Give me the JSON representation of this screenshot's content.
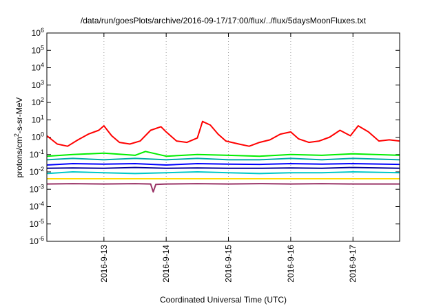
{
  "chart_data": {
    "type": "line",
    "title": "/data/run/goesPlots/archive/2016-09-17/17:00/flux/../flux/5daysMoonFluxes.txt",
    "xlabel": "Coordinated Universal Time (UTC)",
    "ylabel_parts": {
      "pre": "protons/cm",
      "sup": "2",
      "post": "-s-sr-MeV"
    },
    "x_start": "2016-09-12T02:00",
    "x_end": "2016-09-17T18:00",
    "y_scale": "log",
    "ylim": [
      1e-06,
      1000000.0
    ],
    "x_ticks": [
      {
        "x": "2016-09-13T00:00",
        "label": "2016-9-13"
      },
      {
        "x": "2016-09-14T00:00",
        "label": "2016-9-14"
      },
      {
        "x": "2016-09-15T00:00",
        "label": "2016-9-15"
      },
      {
        "x": "2016-09-16T00:00",
        "label": "2016-9-16"
      },
      {
        "x": "2016-09-17T00:00",
        "label": "2016-9-17"
      }
    ],
    "y_ticks": [
      {
        "value": 1e-06,
        "base": "10",
        "exp": "-6"
      },
      {
        "value": 1e-05,
        "base": "10",
        "exp": "-5"
      },
      {
        "value": 0.0001,
        "base": "10",
        "exp": "-4"
      },
      {
        "value": 0.001,
        "base": "10",
        "exp": "-3"
      },
      {
        "value": 0.01,
        "base": "10",
        "exp": "-2"
      },
      {
        "value": 0.1,
        "base": "10",
        "exp": "-1"
      },
      {
        "value": 1,
        "base": "10",
        "exp": "0"
      },
      {
        "value": 10,
        "base": "10",
        "exp": "1"
      },
      {
        "value": 100,
        "base": "10",
        "exp": "2"
      },
      {
        "value": 1000.0,
        "base": "10",
        "exp": "3"
      },
      {
        "value": 10000.0,
        "base": "10",
        "exp": "4"
      },
      {
        "value": 100000.0,
        "base": "10",
        "exp": "5"
      },
      {
        "value": 1000000.0,
        "base": "10",
        "exp": "6"
      }
    ],
    "grid": {
      "vertical": true,
      "horizontal": false,
      "style": "dotted"
    },
    "legend": "none",
    "series": [
      {
        "color": "#ff0000",
        "x": [
          "2016-09-12T02:00",
          "2016-09-12T06:00",
          "2016-09-12T10:00",
          "2016-09-12T14:00",
          "2016-09-12T18:00",
          "2016-09-12T22:00",
          "2016-09-13T00:00",
          "2016-09-13T03:00",
          "2016-09-13T06:00",
          "2016-09-13T10:00",
          "2016-09-13T14:00",
          "2016-09-13T18:00",
          "2016-09-13T22:00",
          "2016-09-14T00:00",
          "2016-09-14T04:00",
          "2016-09-14T08:00",
          "2016-09-14T12:00",
          "2016-09-14T14:00",
          "2016-09-14T17:00",
          "2016-09-14T20:00",
          "2016-09-14T23:00",
          "2016-09-15T04:00",
          "2016-09-15T08:00",
          "2016-09-15T12:00",
          "2016-09-15T16:00",
          "2016-09-15T20:00",
          "2016-09-16T00:00",
          "2016-09-16T03:00",
          "2016-09-16T07:00",
          "2016-09-16T11:00",
          "2016-09-16T15:00",
          "2016-09-16T19:00",
          "2016-09-16T23:00",
          "2016-09-17T02:00",
          "2016-09-17T06:00",
          "2016-09-17T10:00",
          "2016-09-17T14:00",
          "2016-09-17T18:00"
        ],
        "y": [
          1.2,
          0.4,
          0.3,
          0.7,
          1.5,
          2.5,
          4.5,
          1.2,
          0.5,
          0.4,
          0.6,
          2.5,
          4.0,
          2.0,
          0.6,
          0.5,
          0.9,
          8.0,
          5.0,
          1.5,
          0.6,
          0.4,
          0.3,
          0.5,
          0.7,
          1.5,
          2.0,
          0.8,
          0.5,
          0.6,
          1.0,
          2.5,
          1.2,
          4.5,
          2.0,
          0.6,
          0.7,
          0.6
        ]
      },
      {
        "color": "#00ee00",
        "x": [
          "2016-09-12T02:00",
          "2016-09-12T12:00",
          "2016-09-13T00:00",
          "2016-09-13T12:00",
          "2016-09-13T16:00",
          "2016-09-14T00:00",
          "2016-09-14T12:00",
          "2016-09-15T00:00",
          "2016-09-15T12:00",
          "2016-09-16T00:00",
          "2016-09-16T12:00",
          "2016-09-17T00:00",
          "2016-09-17T18:00"
        ],
        "y": [
          0.08,
          0.1,
          0.12,
          0.09,
          0.15,
          0.08,
          0.1,
          0.09,
          0.08,
          0.1,
          0.09,
          0.11,
          0.09
        ]
      },
      {
        "color": "#00aaaa",
        "x": [
          "2016-09-12T02:00",
          "2016-09-12T12:00",
          "2016-09-13T00:00",
          "2016-09-13T12:00",
          "2016-09-14T00:00",
          "2016-09-14T12:00",
          "2016-09-15T00:00",
          "2016-09-15T12:00",
          "2016-09-16T00:00",
          "2016-09-16T12:00",
          "2016-09-17T00:00",
          "2016-09-17T18:00"
        ],
        "y": [
          0.05,
          0.06,
          0.05,
          0.06,
          0.05,
          0.06,
          0.05,
          0.05,
          0.06,
          0.05,
          0.06,
          0.05
        ]
      },
      {
        "color": "#0000ff",
        "x": [
          "2016-09-12T02:00",
          "2016-09-12T12:00",
          "2016-09-13T00:00",
          "2016-09-13T12:00",
          "2016-09-14T00:00",
          "2016-09-14T12:00",
          "2016-09-15T00:00",
          "2016-09-15T12:00",
          "2016-09-16T00:00",
          "2016-09-16T12:00",
          "2016-09-17T00:00",
          "2016-09-17T18:00"
        ],
        "y": [
          0.025,
          0.03,
          0.028,
          0.03,
          0.025,
          0.03,
          0.028,
          0.027,
          0.03,
          0.028,
          0.03,
          0.027
        ]
      },
      {
        "color": "#000099",
        "x": [
          "2016-09-12T02:00",
          "2016-09-12T12:00",
          "2016-09-13T00:00",
          "2016-09-13T12:00",
          "2016-09-14T00:00",
          "2016-09-14T12:00",
          "2016-09-15T00:00",
          "2016-09-15T12:00",
          "2016-09-16T00:00",
          "2016-09-16T12:00",
          "2016-09-17T00:00",
          "2016-09-17T18:00"
        ],
        "y": [
          0.016,
          0.017,
          0.016,
          0.018,
          0.016,
          0.017,
          0.016,
          0.016,
          0.017,
          0.016,
          0.018,
          0.016
        ]
      },
      {
        "color": "#00c8c8",
        "x": [
          "2016-09-12T02:00",
          "2016-09-12T12:00",
          "2016-09-13T00:00",
          "2016-09-13T12:00",
          "2016-09-14T00:00",
          "2016-09-14T12:00",
          "2016-09-15T00:00",
          "2016-09-15T12:00",
          "2016-09-16T00:00",
          "2016-09-16T12:00",
          "2016-09-17T00:00",
          "2016-09-17T18:00"
        ],
        "y": [
          0.008,
          0.01,
          0.009,
          0.008,
          0.009,
          0.01,
          0.009,
          0.008,
          0.009,
          0.009,
          0.01,
          0.009
        ]
      },
      {
        "color": "#ffdd00",
        "x": [
          "2016-09-12T02:00",
          "2016-09-12T12:00",
          "2016-09-13T00:00",
          "2016-09-13T12:00",
          "2016-09-14T00:00",
          "2016-09-14T12:00",
          "2016-09-15T00:00",
          "2016-09-15T12:00",
          "2016-09-16T00:00",
          "2016-09-16T12:00",
          "2016-09-17T00:00",
          "2016-09-17T18:00"
        ],
        "y": [
          0.004,
          0.004,
          0.004,
          0.004,
          0.004,
          0.004,
          0.004,
          0.004,
          0.004,
          0.004,
          0.004,
          0.004
        ]
      },
      {
        "color": "#993366",
        "x": [
          "2016-09-12T02:00",
          "2016-09-12T12:00",
          "2016-09-13T00:00",
          "2016-09-13T12:00",
          "2016-09-13T18:00",
          "2016-09-13T19:00",
          "2016-09-13T20:00",
          "2016-09-14T00:00",
          "2016-09-14T12:00",
          "2016-09-15T00:00",
          "2016-09-15T12:00",
          "2016-09-16T00:00",
          "2016-09-16T12:00",
          "2016-09-17T00:00",
          "2016-09-17T18:00"
        ],
        "y": [
          0.002,
          0.0021,
          0.002,
          0.0021,
          0.002,
          0.0007,
          0.0019,
          0.002,
          0.0021,
          0.002,
          0.0021,
          0.002,
          0.0021,
          0.002,
          0.002
        ]
      }
    ]
  }
}
